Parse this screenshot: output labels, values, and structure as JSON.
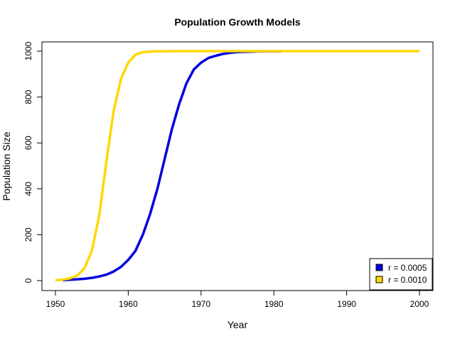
{
  "chart_data": {
    "type": "line",
    "title": "Population Growth Models",
    "xlabel": "Year",
    "ylabel": "Population Size",
    "xlim": [
      1950,
      2000
    ],
    "ylim": [
      0,
      1000
    ],
    "x_ticks": [
      1950,
      1960,
      1970,
      1980,
      1990,
      2000
    ],
    "y_ticks": [
      0,
      200,
      400,
      600,
      800,
      1000
    ],
    "grid": false,
    "legend_position": "bottom-right",
    "series": [
      {
        "name": "r = 0.0005",
        "color": "#0000dd",
        "x": [
          1951,
          1952,
          1953,
          1954,
          1955,
          1956,
          1957,
          1958,
          1959,
          1960,
          1961,
          1962,
          1963,
          1964,
          1965,
          1966,
          1967,
          1968,
          1969,
          1970,
          1971,
          1972,
          1973,
          1974,
          1975,
          1976,
          1977,
          1978,
          1979,
          1980,
          1981
        ],
        "y": [
          2,
          4,
          6,
          8,
          12,
          18,
          26,
          40,
          60,
          90,
          130,
          200,
          290,
          400,
          530,
          660,
          770,
          860,
          920,
          950,
          970,
          980,
          988,
          993,
          996,
          997,
          998,
          999,
          999,
          999,
          999
        ]
      },
      {
        "name": "r = 0.0010",
        "color": "#ffd700",
        "x": [
          1950,
          1951,
          1952,
          1953,
          1954,
          1955,
          1956,
          1957,
          1958,
          1959,
          1960,
          1961,
          1962,
          1963,
          1964,
          1965,
          1966,
          1967,
          1968,
          1969,
          1970,
          1975,
          1980,
          1985,
          1990,
          1995,
          2000
        ],
        "y": [
          2,
          4,
          10,
          22,
          55,
          130,
          280,
          520,
          740,
          880,
          950,
          985,
          995,
          998,
          999,
          999,
          1000,
          1000,
          1000,
          1000,
          1000,
          1000,
          1000,
          1000,
          1000,
          1000,
          1000
        ]
      }
    ]
  }
}
